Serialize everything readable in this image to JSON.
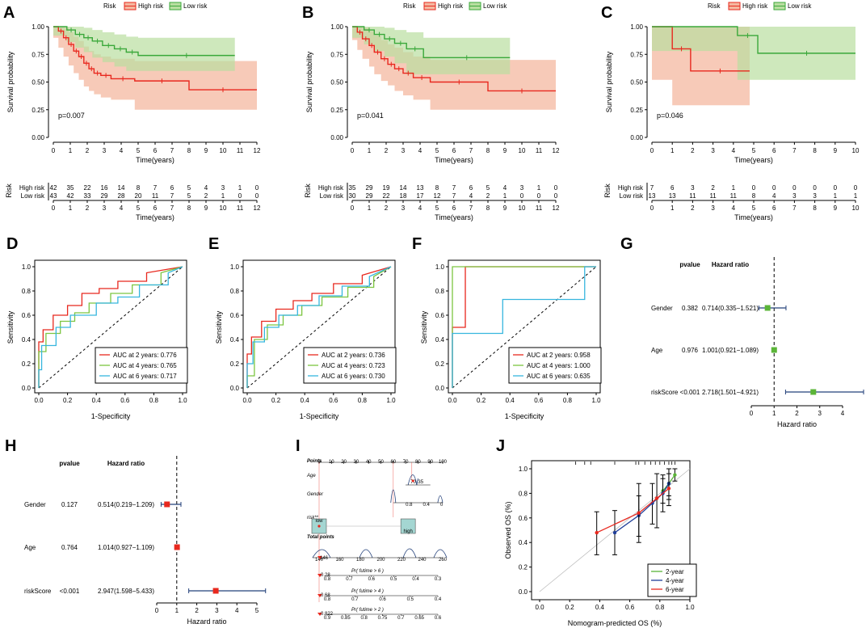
{
  "colors": {
    "high": "#e8281e",
    "low": "#3aa83a",
    "high_fill": "#f4b8a0",
    "low_fill": "#b9dea0",
    "auc2": "#e8281e",
    "auc4": "#7cc540",
    "auc6": "#37b6de",
    "forest_box_g": "#5bb538",
    "forest_box_h": "#e8281e",
    "forest_ci": "#23407a",
    "cal2": "#5bb538",
    "cal4": "#1f3e99",
    "cal6": "#e8281e"
  },
  "chart_data": [
    {
      "panel": "A",
      "type": "line",
      "subtype": "kaplan-meier",
      "legend_title": "Risk",
      "legend": [
        "High risk",
        "Low risk"
      ],
      "ylabel": "Survival probability",
      "xlabel": "Time(years)",
      "ylim": [
        0,
        1
      ],
      "xlim": [
        0,
        12
      ],
      "yticks": [
        "0.00",
        "0.25",
        "0.50",
        "0.75",
        "1.00"
      ],
      "xticks": [
        "0",
        "1",
        "2",
        "3",
        "4",
        "5",
        "6",
        "7",
        "8",
        "9",
        "10",
        "11",
        "12"
      ],
      "pvalue": "p=0.007",
      "high": {
        "t": [
          0,
          0.3,
          0.6,
          0.9,
          1.2,
          1.5,
          1.8,
          2.1,
          2.4,
          2.8,
          3.4,
          4.8,
          8.0,
          12.0
        ],
        "s": [
          1.0,
          0.96,
          0.9,
          0.84,
          0.78,
          0.73,
          0.67,
          0.62,
          0.58,
          0.56,
          0.53,
          0.51,
          0.43,
          0.43
        ],
        "lo": [
          1.0,
          0.9,
          0.81,
          0.73,
          0.65,
          0.58,
          0.52,
          0.46,
          0.42,
          0.39,
          0.36,
          0.34,
          0.25,
          0.25
        ],
        "hi": [
          1.0,
          1.0,
          0.99,
          0.95,
          0.91,
          0.87,
          0.82,
          0.78,
          0.75,
          0.73,
          0.71,
          0.69,
          0.69,
          0.69
        ]
      },
      "low": {
        "t": [
          0,
          0.8,
          1.3,
          1.8,
          2.3,
          2.9,
          3.6,
          4.3,
          5.0,
          10.7
        ],
        "s": [
          1.0,
          0.97,
          0.93,
          0.9,
          0.87,
          0.83,
          0.8,
          0.77,
          0.74,
          0.74
        ],
        "lo": [
          1.0,
          0.92,
          0.86,
          0.81,
          0.77,
          0.72,
          0.68,
          0.64,
          0.6,
          0.6
        ],
        "hi": [
          1.0,
          1.0,
          1.0,
          0.99,
          0.97,
          0.95,
          0.93,
          0.91,
          0.9,
          0.9
        ]
      },
      "risk_table": {
        "title": "Risk",
        "high_label": "High risk",
        "low_label": "Low risk",
        "high": [
          "42",
          "35",
          "22",
          "16",
          "14",
          "8",
          "7",
          "6",
          "5",
          "4",
          "3",
          "1",
          "0"
        ],
        "low": [
          "43",
          "42",
          "33",
          "29",
          "28",
          "20",
          "11",
          "7",
          "5",
          "2",
          "1",
          "0",
          "0"
        ]
      }
    },
    {
      "panel": "B",
      "type": "line",
      "subtype": "kaplan-meier",
      "legend_title": "Risk",
      "legend": [
        "High risk",
        "Low risk"
      ],
      "ylabel": "Survival probability",
      "xlabel": "Time(years)",
      "ylim": [
        0,
        1
      ],
      "xlim": [
        0,
        12
      ],
      "yticks": [
        "0.00",
        "0.25",
        "0.50",
        "0.75",
        "1.00"
      ],
      "xticks": [
        "0",
        "1",
        "2",
        "3",
        "4",
        "5",
        "6",
        "7",
        "8",
        "9",
        "10",
        "11",
        "12"
      ],
      "pvalue": "p=0.041",
      "high": {
        "t": [
          0,
          0.3,
          0.6,
          1.0,
          1.3,
          1.7,
          2.1,
          2.5,
          3.0,
          3.6,
          4.6,
          8.0,
          12.0
        ],
        "s": [
          1.0,
          0.95,
          0.89,
          0.83,
          0.77,
          0.71,
          0.66,
          0.62,
          0.58,
          0.54,
          0.5,
          0.42,
          0.42
        ],
        "lo": [
          1.0,
          0.88,
          0.79,
          0.71,
          0.64,
          0.57,
          0.51,
          0.47,
          0.42,
          0.38,
          0.34,
          0.25,
          0.25
        ],
        "hi": [
          1.0,
          1.0,
          0.99,
          0.96,
          0.92,
          0.88,
          0.84,
          0.81,
          0.77,
          0.73,
          0.7,
          0.7,
          0.7
        ]
      },
      "low": {
        "t": [
          0,
          0.7,
          1.3,
          1.9,
          2.5,
          3.2,
          4.2,
          9.3
        ],
        "s": [
          1.0,
          0.97,
          0.93,
          0.89,
          0.85,
          0.8,
          0.72,
          0.72
        ],
        "lo": [
          1.0,
          0.9,
          0.84,
          0.78,
          0.73,
          0.67,
          0.57,
          0.57
        ],
        "hi": [
          1.0,
          1.0,
          1.0,
          0.99,
          0.97,
          0.95,
          0.9,
          0.9
        ]
      },
      "risk_table": {
        "title": "Risk",
        "high_label": "High risk",
        "low_label": "Low risk",
        "high": [
          "35",
          "29",
          "19",
          "14",
          "13",
          "8",
          "7",
          "6",
          "5",
          "4",
          "3",
          "1",
          "0"
        ],
        "low": [
          "30",
          "29",
          "22",
          "18",
          "17",
          "12",
          "7",
          "4",
          "2",
          "1",
          "0",
          "0",
          "0"
        ]
      }
    },
    {
      "panel": "C",
      "type": "line",
      "subtype": "kaplan-meier",
      "legend_title": "Risk",
      "legend": [
        "High risk",
        "Low risk"
      ],
      "ylabel": "Survival probability",
      "xlabel": "Time(years)",
      "ylim": [
        0,
        1
      ],
      "xlim": [
        0,
        10
      ],
      "yticks": [
        "0.00",
        "0.25",
        "0.50",
        "0.75",
        "1.00"
      ],
      "xticks": [
        "0",
        "1",
        "2",
        "3",
        "4",
        "5",
        "6",
        "7",
        "8",
        "9",
        "10"
      ],
      "pvalue": "p=0.046",
      "high": {
        "t": [
          0,
          1.0,
          1.9,
          4.8
        ],
        "s": [
          1.0,
          0.8,
          0.6,
          0.6
        ],
        "lo": [
          1.0,
          0.52,
          0.29,
          0.29
        ],
        "hi": [
          1.0,
          1.0,
          1.0,
          1.0
        ]
      },
      "low": {
        "t": [
          0,
          4.2,
          5.2,
          10.0
        ],
        "s": [
          1.0,
          0.92,
          0.76,
          0.76
        ],
        "lo": [
          1.0,
          0.78,
          0.52,
          0.52
        ],
        "hi": [
          1.0,
          1.0,
          1.0,
          1.0
        ]
      },
      "risk_table": {
        "title": "Risk",
        "high_label": "High risk",
        "low_label": "Low risk",
        "high": [
          "7",
          "6",
          "3",
          "2",
          "1",
          "0",
          "0",
          "0",
          "0",
          "0",
          "0"
        ],
        "low": [
          "13",
          "13",
          "11",
          "11",
          "11",
          "8",
          "4",
          "3",
          "3",
          "1",
          "1"
        ]
      }
    },
    {
      "panel": "D",
      "type": "line",
      "subtype": "roc",
      "xlabel": "1-Specificity",
      "ylabel": "Sensitivity",
      "xticks": [
        "0.0",
        "0.2",
        "0.4",
        "0.6",
        "0.8",
        "1.0"
      ],
      "yticks": [
        "0.0",
        "0.2",
        "0.4",
        "0.6",
        "0.8",
        "1.0"
      ],
      "legend": [
        "AUC at 2 years: 0.776",
        "AUC at 4 years: 0.765",
        "AUC at 6 years: 0.717"
      ],
      "series": [
        {
          "name": "2 years",
          "x": [
            0,
            0,
            0.03,
            0.03,
            0.1,
            0.1,
            0.2,
            0.2,
            0.3,
            0.3,
            0.42,
            0.42,
            0.55,
            0.55,
            0.75,
            0.75,
            1.0
          ],
          "y": [
            0,
            0.38,
            0.38,
            0.48,
            0.48,
            0.6,
            0.6,
            0.68,
            0.68,
            0.78,
            0.78,
            0.82,
            0.82,
            0.88,
            0.88,
            0.95,
            1.0
          ]
        },
        {
          "name": "4 years",
          "x": [
            0,
            0,
            0.05,
            0.05,
            0.15,
            0.15,
            0.25,
            0.25,
            0.35,
            0.35,
            0.5,
            0.5,
            0.65,
            0.65,
            0.85,
            0.85,
            1.0
          ],
          "y": [
            0,
            0.3,
            0.3,
            0.45,
            0.45,
            0.55,
            0.55,
            0.62,
            0.62,
            0.7,
            0.7,
            0.78,
            0.78,
            0.85,
            0.85,
            0.95,
            1.0
          ]
        },
        {
          "name": "6 years",
          "x": [
            0,
            0,
            0.02,
            0.02,
            0.12,
            0.12,
            0.22,
            0.22,
            0.4,
            0.4,
            0.55,
            0.55,
            0.7,
            0.7,
            0.9,
            0.9,
            1.0
          ],
          "y": [
            0,
            0.15,
            0.15,
            0.35,
            0.35,
            0.5,
            0.5,
            0.6,
            0.6,
            0.7,
            0.7,
            0.75,
            0.75,
            0.85,
            0.85,
            0.95,
            1.0
          ]
        }
      ]
    },
    {
      "panel": "E",
      "type": "line",
      "subtype": "roc",
      "xlabel": "1-Specificity",
      "ylabel": "Sensitivity",
      "xticks": [
        "0.0",
        "0.2",
        "0.4",
        "0.6",
        "0.8",
        "1.0"
      ],
      "yticks": [
        "0.0",
        "0.2",
        "0.4",
        "0.6",
        "0.8",
        "1.0"
      ],
      "legend": [
        "AUC at 2 years: 0.736",
        "AUC at 4 years: 0.723",
        "AUC at 6 years: 0.730"
      ],
      "series": [
        {
          "name": "2 years",
          "x": [
            0,
            0,
            0.03,
            0.03,
            0.1,
            0.1,
            0.2,
            0.2,
            0.32,
            0.32,
            0.45,
            0.45,
            0.6,
            0.6,
            0.8,
            0.8,
            1.0
          ],
          "y": [
            0,
            0.28,
            0.28,
            0.42,
            0.42,
            0.55,
            0.55,
            0.65,
            0.65,
            0.72,
            0.72,
            0.78,
            0.78,
            0.86,
            0.86,
            0.93,
            1.0
          ]
        },
        {
          "name": "4 years",
          "x": [
            0,
            0,
            0.05,
            0.05,
            0.14,
            0.14,
            0.25,
            0.25,
            0.38,
            0.38,
            0.52,
            0.52,
            0.7,
            0.7,
            0.88,
            0.88,
            1.0
          ],
          "y": [
            0,
            0.1,
            0.1,
            0.4,
            0.4,
            0.52,
            0.52,
            0.6,
            0.6,
            0.68,
            0.68,
            0.75,
            0.75,
            0.83,
            0.83,
            0.92,
            1.0
          ]
        },
        {
          "name": "6 years",
          "x": [
            0,
            0,
            0.04,
            0.04,
            0.12,
            0.12,
            0.22,
            0.22,
            0.35,
            0.35,
            0.5,
            0.5,
            0.66,
            0.66,
            0.85,
            0.85,
            1.0
          ],
          "y": [
            0,
            0.2,
            0.2,
            0.38,
            0.38,
            0.5,
            0.5,
            0.6,
            0.6,
            0.68,
            0.68,
            0.76,
            0.76,
            0.84,
            0.84,
            0.92,
            1.0
          ]
        }
      ]
    },
    {
      "panel": "F",
      "type": "line",
      "subtype": "roc",
      "xlabel": "1-Specificity",
      "ylabel": "Sensitivity",
      "xticks": [
        "0.0",
        "0.2",
        "0.4",
        "0.6",
        "0.8",
        "1.0"
      ],
      "yticks": [
        "0.0",
        "0.2",
        "0.4",
        "0.6",
        "0.8",
        "1.0"
      ],
      "legend": [
        "AUC at 2 years: 0.958",
        "AUC at 4 years: 1.000",
        "AUC at 6 years: 0.635"
      ],
      "series": [
        {
          "name": "2 years",
          "x": [
            0,
            0,
            0.09,
            0.09,
            1.0
          ],
          "y": [
            0,
            0.5,
            0.5,
            1.0,
            1.0
          ]
        },
        {
          "name": "4 years",
          "x": [
            0,
            0,
            1.0
          ],
          "y": [
            0,
            1.0,
            1.0
          ]
        },
        {
          "name": "6 years",
          "x": [
            0,
            0,
            0.35,
            0.35,
            0.92,
            0.92,
            1.0
          ],
          "y": [
            0,
            0.45,
            0.45,
            0.73,
            0.73,
            1.0,
            1.0
          ]
        }
      ]
    },
    {
      "panel": "G",
      "type": "scatter",
      "subtype": "forest",
      "col_pvalue": "pvalue",
      "col_hr": "Hazard ratio",
      "xlabel": "Hazard ratio",
      "xticks": [
        "0",
        "1",
        "2",
        "3",
        "4"
      ],
      "rows": [
        {
          "label": "Gender",
          "pvalue": "0.382",
          "hr_text": "0.714(0.335−1.521)",
          "hr": 0.714,
          "lo": 0.335,
          "hi": 1.521
        },
        {
          "label": "Age",
          "pvalue": "0.976",
          "hr_text": "1.001(0.921−1.089)",
          "hr": 1.001,
          "lo": 0.921,
          "hi": 1.089
        },
        {
          "label": "riskScore",
          "pvalue": "<0.001",
          "hr_text": "2.718(1.501−4.921)",
          "hr": 2.718,
          "lo": 1.501,
          "hi": 4.921
        }
      ]
    },
    {
      "panel": "H",
      "type": "scatter",
      "subtype": "forest",
      "col_pvalue": "pvalue",
      "col_hr": "Hazard ratio",
      "xlabel": "Hazard ratio",
      "xticks": [
        "0",
        "1",
        "2",
        "3",
        "4",
        "5"
      ],
      "rows": [
        {
          "label": "Gender",
          "pvalue": "0.127",
          "hr_text": "0.514(0.219−1.209)",
          "hr": 0.514,
          "lo": 0.219,
          "hi": 1.209
        },
        {
          "label": "Age",
          "pvalue": "0.764",
          "hr_text": "1.014(0.927−1.109)",
          "hr": 1.014,
          "lo": 0.927,
          "hi": 1.109
        },
        {
          "label": "riskScore",
          "pvalue": "<0.001",
          "hr_text": "2.947(1.598−5.433)",
          "hr": 2.947,
          "lo": 1.598,
          "hi": 5.433
        }
      ]
    },
    {
      "panel": "I",
      "type": "other",
      "subtype": "nomogram",
      "rows": [
        "Points",
        "Age",
        "Gender",
        "risk**",
        "Total points"
      ],
      "points_ticks": [
        "0",
        "10",
        "20",
        "30",
        "40",
        "50",
        "60",
        "70",
        "80",
        "90",
        "100"
      ],
      "age_ticks": [
        "70",
        "35"
      ],
      "gender_ticks": [
        "0.8",
        "0.4",
        "0"
      ],
      "risk_labels": [
        "low",
        "high"
      ],
      "total_ticks": [
        "140",
        "160",
        "180",
        "200",
        "220",
        "240",
        "260"
      ],
      "total_point_value": "146",
      "scales": [
        {
          "label": "Pr( futime > 6 )",
          "value": "0.28",
          "ticks": [
            "0.8",
            "0.7",
            "0.6",
            "0.5",
            "0.4",
            "0.3"
          ]
        },
        {
          "label": "Pr( futime > 4 )",
          "value": "0.68",
          "ticks": [
            "0.8",
            "0.7",
            "0.6",
            "0.5",
            "0.4"
          ]
        },
        {
          "label": "Pr( futime > 2 )",
          "value": "0.822",
          "ticks": [
            "0.9",
            "0.85",
            "0.8",
            "0.75",
            "0.7",
            "0.65",
            "0.6"
          ]
        }
      ]
    },
    {
      "panel": "J",
      "type": "line",
      "subtype": "calibration",
      "xlabel": "Nomogram-predicted OS (%)",
      "ylabel": "Observed OS (%)",
      "xticks": [
        "0.0",
        "0.2",
        "0.4",
        "0.6",
        "0.8",
        "1.0"
      ],
      "yticks": [
        "0.0",
        "0.2",
        "0.4",
        "0.6",
        "0.8",
        "1.0"
      ],
      "legend": [
        "2-year",
        "4-year",
        "6-year"
      ],
      "series": [
        {
          "name": "2-year",
          "x": [
            0.82,
            0.86,
            0.9
          ],
          "y": [
            0.82,
            0.88,
            0.95
          ],
          "lo": [
            0.72,
            0.78,
            0.9
          ],
          "hi": [
            0.92,
            0.96,
            1.0
          ]
        },
        {
          "name": "4-year",
          "x": [
            0.5,
            0.66,
            0.75,
            0.82,
            0.86
          ],
          "y": [
            0.48,
            0.62,
            0.72,
            0.8,
            0.88
          ],
          "lo": [
            0.3,
            0.45,
            0.55,
            0.65,
            0.75
          ],
          "hi": [
            0.66,
            0.78,
            0.88,
            0.95,
            1.0
          ]
        },
        {
          "name": "6-year",
          "x": [
            0.38,
            0.66,
            0.78,
            0.86
          ],
          "y": [
            0.48,
            0.64,
            0.76,
            0.84
          ],
          "lo": [
            0.3,
            0.4,
            0.52,
            0.7
          ],
          "hi": [
            0.65,
            0.88,
            0.96,
            1.0
          ]
        }
      ]
    }
  ]
}
